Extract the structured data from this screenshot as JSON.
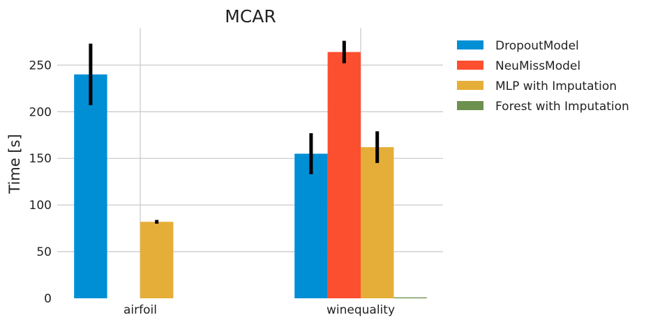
{
  "chart_data": {
    "type": "bar",
    "title": "MCAR",
    "xlabel": "",
    "ylabel": "Time [s]",
    "ylim": [
      0,
      290
    ],
    "yticks": [
      0,
      50,
      100,
      150,
      200,
      250
    ],
    "grid": true,
    "legend_position": "outside-right",
    "categories": [
      "airfoil",
      "winequality"
    ],
    "series": [
      {
        "name": "DropoutModel",
        "color": "#008fd5",
        "values": [
          240,
          155
        ],
        "errors": [
          33,
          22
        ]
      },
      {
        "name": "NeuMissModel",
        "color": "#fc4f30",
        "values": [
          0,
          264
        ],
        "errors": [
          0,
          12
        ]
      },
      {
        "name": "MLP with Imputation",
        "color": "#e5ae38",
        "values": [
          82,
          162
        ],
        "errors": [
          2,
          17
        ]
      },
      {
        "name": "Forest with Imputation",
        "color": "#6d904f",
        "values": [
          0,
          1
        ],
        "errors": [
          0,
          0
        ]
      }
    ]
  }
}
